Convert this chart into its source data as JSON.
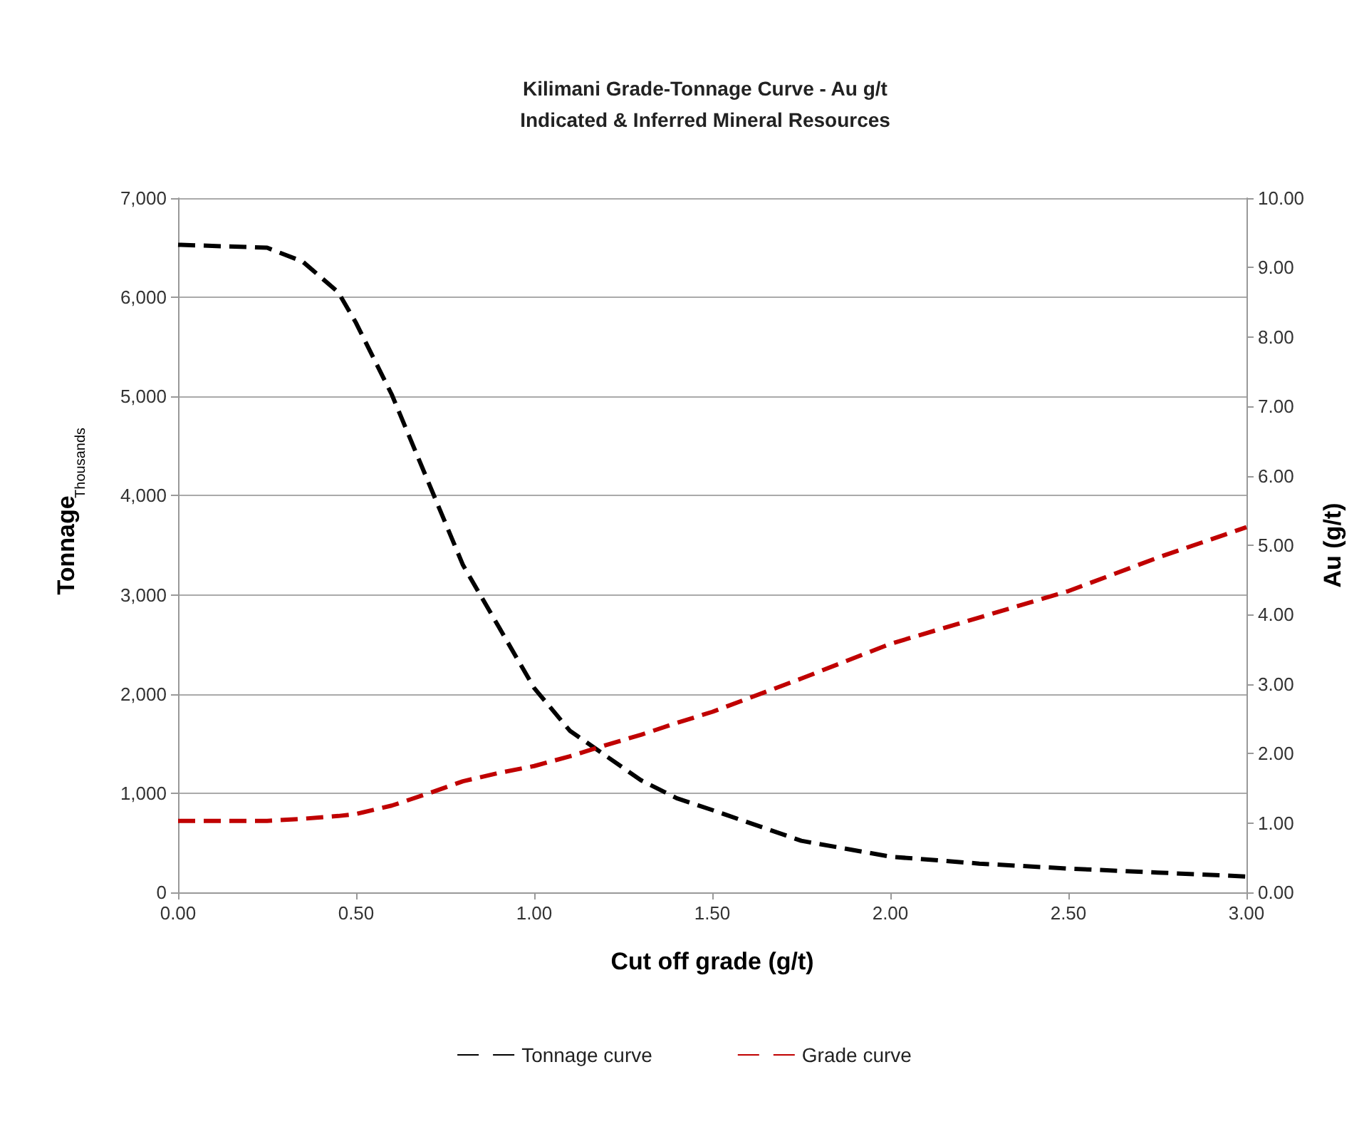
{
  "chart_data": {
    "type": "line",
    "title": "Kilimani Grade-Tonnage Curve - Au g/t",
    "subtitle": "Indicated & Inferred Mineral Resources",
    "xlabel": "Cut off grade (g/t)",
    "ylabel": "Tonnage",
    "y2label": "Au (g/t)",
    "annotations": [
      "Thousands"
    ],
    "x": [
      0,
      0.25,
      0.35,
      0.45,
      0.5,
      0.6,
      0.7,
      0.8,
      0.9,
      1.0,
      1.1,
      1.2,
      1.3,
      1.4,
      1.5,
      1.75,
      2.0,
      2.25,
      2.5,
      2.75,
      3.0
    ],
    "series": [
      {
        "name": "Tonnage curve",
        "color": "#000000",
        "values": [
          6530,
          6500,
          6360,
          6050,
          5740,
          5020,
          4160,
          3300,
          2680,
          2060,
          1630,
          1380,
          1130,
          950,
          830,
          520,
          360,
          290,
          240,
          200,
          160
        ]
      },
      {
        "name": "Grade curve",
        "color": "#c00000",
        "axis": "y2",
        "values": [
          1.03,
          1.03,
          1.06,
          1.1,
          1.13,
          1.25,
          1.42,
          1.6,
          1.72,
          1.82,
          1.96,
          2.12,
          2.27,
          2.44,
          2.6,
          3.08,
          3.58,
          3.96,
          4.34,
          4.82,
          5.26
        ]
      }
    ],
    "xlim": [
      0,
      3
    ],
    "xticks": [
      {
        "value": 0,
        "label": "0.00"
      },
      {
        "value": 0.5,
        "label": "0.50"
      },
      {
        "value": 1,
        "label": "1.00"
      },
      {
        "value": 1.5,
        "label": "1.50"
      },
      {
        "value": 2,
        "label": "2.00"
      },
      {
        "value": 2.5,
        "label": "2.50"
      },
      {
        "value": 3,
        "label": "3.00"
      }
    ],
    "ylim": [
      0,
      7000
    ],
    "yticks": [
      0,
      {
        "value": 1000,
        "label": "1,000"
      },
      {
        "value": 2000,
        "label": "2,000"
      },
      {
        "value": 3000,
        "label": "3,000"
      },
      {
        "value": 4000,
        "label": "4,000"
      },
      {
        "value": 5000,
        "label": "5,000"
      },
      {
        "value": 6000,
        "label": "6,000"
      },
      {
        "value": 7000,
        "label": "7,000"
      }
    ],
    "y2lim": [
      0,
      10
    ],
    "y2ticks": [
      {
        "value": 0,
        "label": "0.00"
      },
      {
        "value": 1,
        "label": "1.00"
      },
      {
        "value": 2,
        "label": "2.00"
      },
      {
        "value": 3,
        "label": "3.00"
      },
      {
        "value": 4,
        "label": "4.00"
      },
      {
        "value": 5,
        "label": "5.00"
      },
      {
        "value": 6,
        "label": "6.00"
      },
      {
        "value": 7,
        "label": "7.00"
      },
      {
        "value": 8,
        "label": "8.00"
      },
      {
        "value": 9,
        "label": "9.00"
      },
      {
        "value": 10,
        "label": "10.00"
      }
    ],
    "grid": "y",
    "legend": "bottom",
    "marker": "none",
    "line_style": "dashed"
  }
}
